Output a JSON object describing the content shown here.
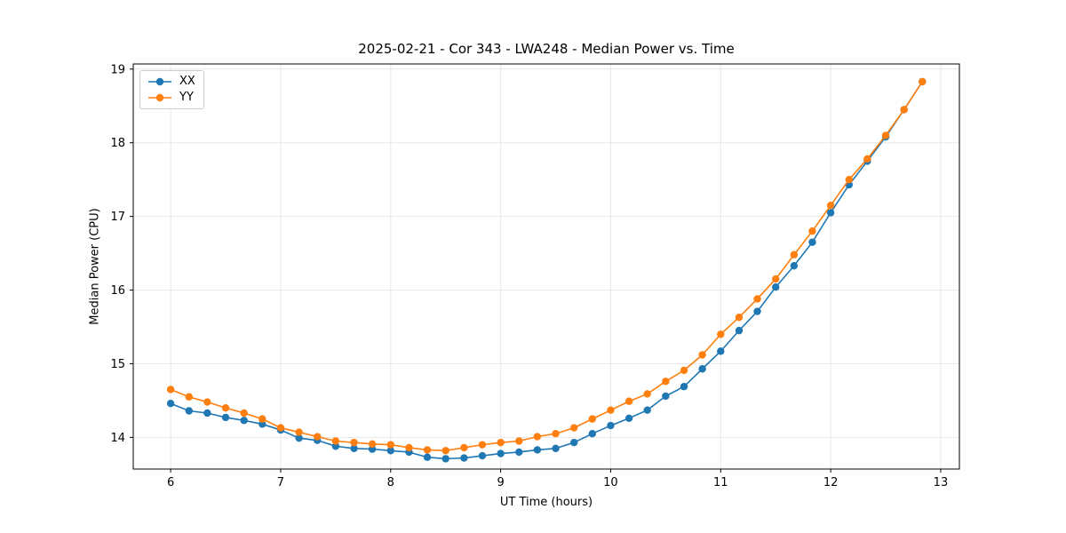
{
  "chart_data": {
    "type": "line",
    "title": "2025-02-21 - Cor 343 - LWA248 - Median Power vs. Time",
    "xlabel": "UT Time (hours)",
    "ylabel": "Median Power (CPU)",
    "xlim": [
      5.66,
      13.17
    ],
    "ylim": [
      13.57,
      19.07
    ],
    "xticks": [
      6,
      7,
      8,
      9,
      10,
      11,
      12,
      13
    ],
    "yticks": [
      14,
      15,
      16,
      17,
      18,
      19
    ],
    "grid": true,
    "legend_position": "upper left",
    "background_color": "#ffffff",
    "axis_color": "#000000",
    "grid_color": "#e8e8e8",
    "x": [
      6.0,
      6.167,
      6.333,
      6.5,
      6.667,
      6.833,
      7.0,
      7.167,
      7.333,
      7.5,
      7.667,
      7.833,
      8.0,
      8.167,
      8.333,
      8.5,
      8.667,
      8.833,
      9.0,
      9.167,
      9.333,
      9.5,
      9.667,
      9.833,
      10.0,
      10.167,
      10.333,
      10.5,
      10.667,
      10.833,
      11.0,
      11.167,
      11.333,
      11.5,
      11.667,
      11.833,
      12.0,
      12.167,
      12.333,
      12.5,
      12.667,
      12.833
    ],
    "series": [
      {
        "name": "XX",
        "color": "#1f77b4",
        "values": [
          14.46,
          14.36,
          14.33,
          14.27,
          14.23,
          14.18,
          14.1,
          13.99,
          13.96,
          13.88,
          13.85,
          13.84,
          13.82,
          13.8,
          13.73,
          13.71,
          13.72,
          13.75,
          13.78,
          13.8,
          13.83,
          13.85,
          13.93,
          14.05,
          14.16,
          14.26,
          14.37,
          14.56,
          14.69,
          14.93,
          15.17,
          15.45,
          15.71,
          16.04,
          16.33,
          16.65,
          17.05,
          17.43,
          17.75,
          18.08,
          18.45,
          18.83
        ]
      },
      {
        "name": "YY",
        "color": "#ff7f0e",
        "values": [
          14.65,
          14.55,
          14.48,
          14.4,
          14.33,
          14.25,
          14.13,
          14.07,
          14.01,
          13.95,
          13.93,
          13.91,
          13.9,
          13.86,
          13.83,
          13.82,
          13.86,
          13.9,
          13.93,
          13.95,
          14.01,
          14.05,
          14.13,
          14.25,
          14.37,
          14.49,
          14.59,
          14.76,
          14.91,
          15.12,
          15.4,
          15.63,
          15.88,
          16.15,
          16.48,
          16.8,
          17.15,
          17.5,
          17.78,
          18.1,
          18.45,
          18.83
        ]
      }
    ]
  }
}
